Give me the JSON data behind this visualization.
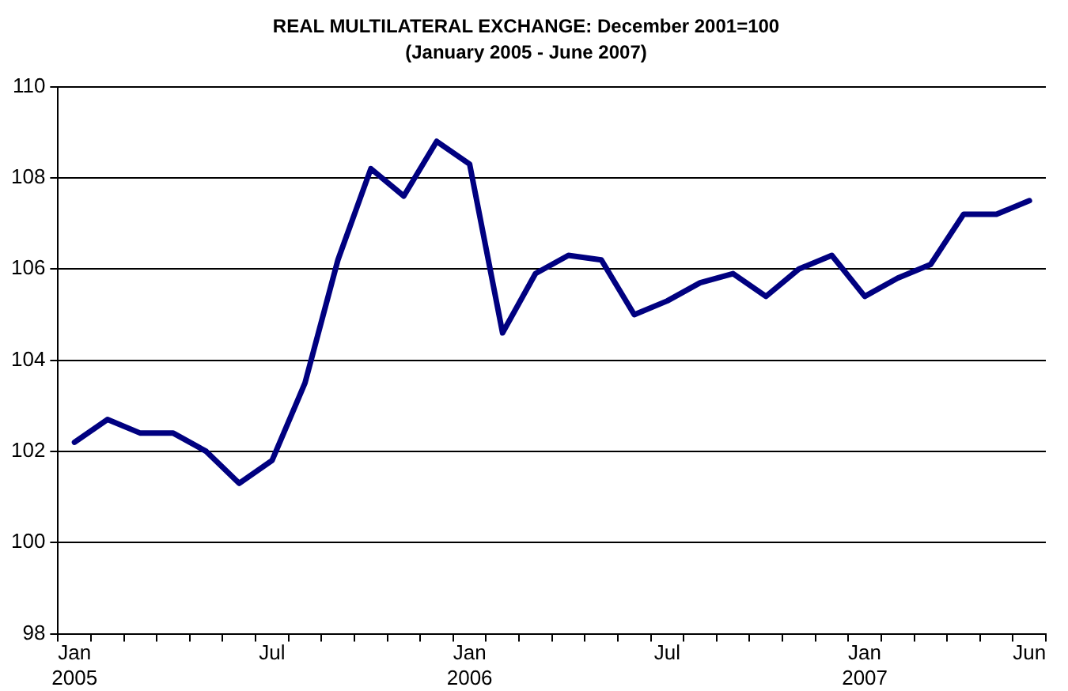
{
  "chart_data": {
    "type": "line",
    "title": "REAL MULTILATERAL EXCHANGE: December 2001=100",
    "subtitle": "(January 2005 - June 2007)",
    "categories": [
      "Jan 2005",
      null,
      null,
      null,
      null,
      null,
      "Jul",
      null,
      null,
      null,
      null,
      null,
      "Jan 2006",
      null,
      null,
      null,
      null,
      null,
      "Jul",
      null,
      null,
      null,
      null,
      null,
      "Jan 2007",
      null,
      null,
      null,
      null,
      "Jun"
    ],
    "series": [
      {
        "color": "#000080",
        "values": [
          102.2,
          102.7,
          102.4,
          102.4,
          102.0,
          101.3,
          101.8,
          103.5,
          106.2,
          108.2,
          107.6,
          108.8,
          108.3,
          104.6,
          105.9,
          106.3,
          106.2,
          105.0,
          105.3,
          105.7,
          105.9,
          105.4,
          106.0,
          106.3,
          105.4,
          105.8,
          106.1,
          107.2,
          107.2,
          107.5
        ]
      }
    ],
    "ylim": [
      98,
      110
    ],
    "yticks": [
      98,
      100,
      102,
      104,
      106,
      108,
      110
    ],
    "grid": "y",
    "legend": false,
    "marker": "none",
    "line_style": "solid"
  }
}
